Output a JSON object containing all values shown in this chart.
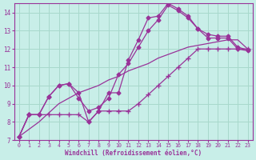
{
  "background_color": "#c8eee8",
  "grid_color": "#a8d8cc",
  "line_color": "#993399",
  "xlim": [
    -0.5,
    23.5
  ],
  "ylim": [
    7,
    14.5
  ],
  "xlabel": "Windchill (Refroidissement éolien,°C)",
  "xticks": [
    0,
    1,
    2,
    3,
    4,
    5,
    6,
    7,
    8,
    9,
    10,
    11,
    12,
    13,
    14,
    15,
    16,
    17,
    18,
    19,
    20,
    21,
    22,
    23
  ],
  "yticks": [
    7,
    8,
    9,
    10,
    11,
    12,
    13,
    14
  ],
  "line1": {
    "x": [
      0,
      1,
      2,
      3,
      4,
      5,
      6,
      7,
      8,
      9,
      10,
      11,
      12,
      13,
      14,
      15,
      16,
      17,
      18,
      19,
      20,
      21,
      22,
      23
    ],
    "y": [
      7.2,
      8.4,
      8.4,
      9.4,
      10.0,
      10.1,
      9.6,
      8.0,
      8.6,
      9.6,
      9.6,
      11.4,
      12.5,
      13.7,
      13.8,
      14.5,
      14.2,
      13.8,
      13.1,
      12.8,
      12.7,
      12.7,
      12.1,
      11.95
    ],
    "marker": "D",
    "markersize": 2.5
  },
  "line2": {
    "x": [
      0,
      1,
      2,
      3,
      4,
      5,
      6,
      7,
      8,
      9,
      10,
      11,
      12,
      13,
      14,
      15,
      16,
      17,
      18,
      19,
      20,
      21,
      22,
      23
    ],
    "y": [
      7.2,
      8.4,
      8.4,
      9.4,
      10.0,
      10.1,
      9.3,
      8.6,
      8.8,
      9.3,
      10.6,
      11.2,
      12.1,
      13.0,
      13.6,
      14.4,
      14.1,
      13.7,
      13.1,
      12.6,
      12.6,
      12.6,
      12.0,
      11.9
    ],
    "marker": "D",
    "markersize": 2.5
  },
  "line3": {
    "x": [
      0,
      1,
      2,
      3,
      4,
      5,
      6,
      7,
      8,
      9,
      10,
      11,
      12,
      13,
      14,
      15,
      16,
      17,
      18,
      19,
      20,
      21,
      22,
      23
    ],
    "y": [
      7.2,
      7.6,
      8.0,
      8.5,
      9.0,
      9.3,
      9.6,
      9.8,
      10.0,
      10.3,
      10.5,
      10.8,
      11.0,
      11.2,
      11.5,
      11.7,
      11.9,
      12.1,
      12.2,
      12.3,
      12.4,
      12.5,
      12.5,
      12.0
    ],
    "marker": null,
    "markersize": 0
  },
  "line4": {
    "x": [
      0,
      1,
      2,
      3,
      4,
      5,
      6,
      7,
      8,
      9,
      10,
      11,
      12,
      13,
      14,
      15,
      16,
      17,
      18,
      19,
      20,
      21,
      22,
      23
    ],
    "y": [
      7.2,
      8.4,
      8.4,
      8.4,
      8.4,
      8.4,
      8.4,
      8.0,
      8.6,
      8.6,
      8.6,
      8.6,
      9.0,
      9.5,
      10.0,
      10.5,
      11.0,
      11.5,
      12.0,
      12.0,
      12.0,
      12.0,
      12.0,
      12.0
    ],
    "marker": "+",
    "markersize": 4
  }
}
